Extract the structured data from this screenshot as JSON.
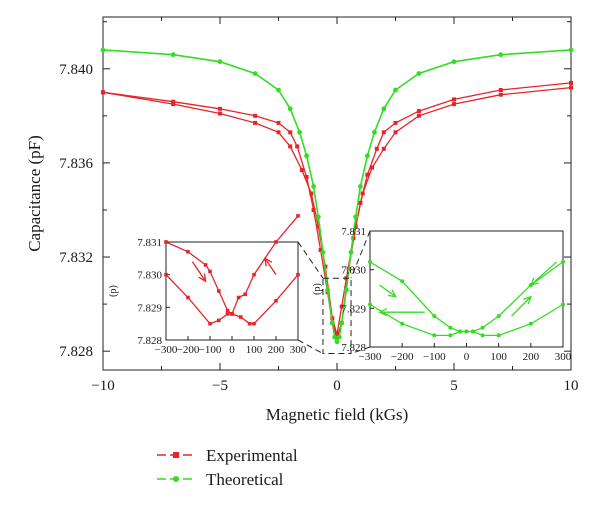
{
  "chart_data": {
    "type": "line",
    "xlabel": "Magnetic field (kGs)",
    "ylabel": "Capacitance (pF)",
    "xlim": [
      -10,
      10
    ],
    "ylim": [
      7.8272,
      7.8422
    ],
    "xticks": [
      -10,
      -5,
      0,
      5,
      10
    ],
    "xtick_labels": [
      "−10",
      "−5",
      "0",
      "5",
      "10"
    ],
    "yticks": [
      7.828,
      7.832,
      7.836,
      7.84
    ],
    "ytick_labels": [
      "7.828",
      "7.832",
      "7.836",
      "7.840"
    ],
    "grid": false,
    "legend_position": "bottom-left",
    "series": [
      {
        "name": "Experimental",
        "color": "#e8242a",
        "marker": "square",
        "values_upper": [
          [
            -10,
            7.839
          ],
          [
            -7,
            7.8386
          ],
          [
            -5,
            7.8383
          ],
          [
            -3.5,
            7.838
          ],
          [
            -2.5,
            7.8377
          ],
          [
            -2,
            7.8373
          ],
          [
            -1.7,
            7.8367
          ],
          [
            -1.3,
            7.8354
          ],
          [
            -1,
            7.834
          ],
          [
            -0.7,
            7.8323
          ],
          [
            -0.4,
            7.8305
          ],
          [
            -0.2,
            7.8292
          ],
          [
            0,
            7.8286
          ],
          [
            0.2,
            7.8292
          ],
          [
            0.5,
            7.8315
          ],
          [
            0.8,
            7.8333
          ],
          [
            1.1,
            7.8347
          ],
          [
            1.5,
            7.8358
          ],
          [
            2,
            7.8366
          ],
          [
            2.5,
            7.8373
          ],
          [
            3.5,
            7.838
          ],
          [
            5,
            7.8385
          ],
          [
            7,
            7.8389
          ],
          [
            10,
            7.8392
          ]
        ],
        "values_lower": [
          [
            -10,
            7.839
          ],
          [
            -7,
            7.8385
          ],
          [
            -5,
            7.8381
          ],
          [
            -3.5,
            7.8377
          ],
          [
            -2.5,
            7.8373
          ],
          [
            -2,
            7.8367
          ],
          [
            -1.5,
            7.8357
          ],
          [
            -1.1,
            7.8347
          ],
          [
            -0.8,
            7.8333
          ],
          [
            -0.5,
            7.8316
          ],
          [
            -0.2,
            7.8294
          ],
          [
            0,
            7.8287
          ],
          [
            0.2,
            7.8299
          ],
          [
            0.4,
            7.8311
          ],
          [
            0.7,
            7.8328
          ],
          [
            1,
            7.8343
          ],
          [
            1.3,
            7.8355
          ],
          [
            1.7,
            7.8366
          ],
          [
            2,
            7.8373
          ],
          [
            2.5,
            7.8377
          ],
          [
            3.5,
            7.8382
          ],
          [
            5,
            7.8387
          ],
          [
            7,
            7.8391
          ],
          [
            10,
            7.8394
          ]
        ]
      },
      {
        "name": "Theoretical",
        "color": "#33dd22",
        "marker": "circle",
        "values": [
          [
            -10,
            7.8408
          ],
          [
            -7,
            7.8406
          ],
          [
            -5,
            7.8403
          ],
          [
            -3.5,
            7.8398
          ],
          [
            -2.5,
            7.8391
          ],
          [
            -2,
            7.8383
          ],
          [
            -1.6,
            7.8373
          ],
          [
            -1.3,
            7.8363
          ],
          [
            -1,
            7.835
          ],
          [
            -0.8,
            7.8337
          ],
          [
            -0.6,
            7.8322
          ],
          [
            -0.4,
            7.8306
          ],
          [
            -0.2,
            7.8292
          ],
          [
            -0.1,
            7.8286
          ],
          [
            0,
            7.8284
          ],
          [
            0.1,
            7.8286
          ],
          [
            0.2,
            7.8292
          ],
          [
            0.4,
            7.8306
          ],
          [
            0.6,
            7.8322
          ],
          [
            0.8,
            7.8337
          ],
          [
            1,
            7.835
          ],
          [
            1.3,
            7.8363
          ],
          [
            1.6,
            7.8373
          ],
          [
            2,
            7.8383
          ],
          [
            2.5,
            7.8391
          ],
          [
            3.5,
            7.8398
          ],
          [
            5,
            7.8403
          ],
          [
            7,
            7.8406
          ],
          [
            10,
            7.8408
          ]
        ]
      }
    ],
    "insets": [
      {
        "series": "Experimental",
        "xlim": [
          -300,
          300
        ],
        "ylim": [
          7.828,
          7.831
        ],
        "xticks": [
          -300,
          -200,
          -100,
          0,
          100,
          200,
          300
        ],
        "xtick_labels": [
          "−300",
          "−200",
          "−100",
          "0",
          "100",
          "200",
          "300"
        ],
        "yticks": [
          7.828,
          7.829,
          7.83,
          7.831
        ],
        "ytick_labels": [
          "7.828",
          "7.829",
          "7.830",
          "7.831"
        ],
        "ylabel": "(p)",
        "curve_a": [
          [
            -300,
            7.831
          ],
          [
            -200,
            7.8307
          ],
          [
            -120,
            7.8303
          ],
          [
            -100,
            7.8301
          ],
          [
            -60,
            7.8295
          ],
          [
            -20,
            7.8289
          ],
          [
            0,
            7.8288
          ],
          [
            40,
            7.8287
          ],
          [
            80,
            7.8285
          ],
          [
            100,
            7.8285
          ],
          [
            200,
            7.8292
          ],
          [
            300,
            7.83
          ]
        ],
        "curve_b": [
          [
            -300,
            7.83
          ],
          [
            -200,
            7.8293
          ],
          [
            -100,
            7.8285
          ],
          [
            -60,
            7.8286
          ],
          [
            -20,
            7.8288
          ],
          [
            0,
            7.8288
          ],
          [
            30,
            7.8293
          ],
          [
            60,
            7.8294
          ],
          [
            100,
            7.83
          ],
          [
            200,
            7.831
          ],
          [
            300,
            7.8318
          ]
        ]
      },
      {
        "series": "Theoretical",
        "xlim": [
          -300,
          300
        ],
        "ylim": [
          7.828,
          7.831
        ],
        "xticks": [
          -300,
          -200,
          -100,
          0,
          100,
          200,
          300
        ],
        "xtick_labels": [
          "−300",
          "−200",
          "−100",
          "0",
          "100",
          "200",
          "300"
        ],
        "yticks": [
          7.828,
          7.829,
          7.83,
          7.831
        ],
        "ytick_labels": [
          "7.828",
          "7.829",
          "7.830",
          "7.831"
        ],
        "ylabel": "(p)",
        "curve_a": [
          [
            -300,
            7.8302
          ],
          [
            -200,
            7.8297
          ],
          [
            -100,
            7.8288
          ],
          [
            -50,
            7.8285
          ],
          [
            -20,
            7.8284
          ],
          [
            0,
            7.8284
          ],
          [
            20,
            7.8284
          ],
          [
            50,
            7.8283
          ],
          [
            100,
            7.8283
          ],
          [
            200,
            7.8286
          ],
          [
            300,
            7.8291
          ]
        ],
        "curve_b": [
          [
            -300,
            7.8291
          ],
          [
            -200,
            7.8286
          ],
          [
            -100,
            7.8283
          ],
          [
            -50,
            7.8283
          ],
          [
            -20,
            7.8284
          ],
          [
            0,
            7.8284
          ],
          [
            20,
            7.8284
          ],
          [
            50,
            7.8285
          ],
          [
            100,
            7.8288
          ],
          [
            200,
            7.8296
          ],
          [
            300,
            7.8302
          ]
        ]
      }
    ]
  }
}
